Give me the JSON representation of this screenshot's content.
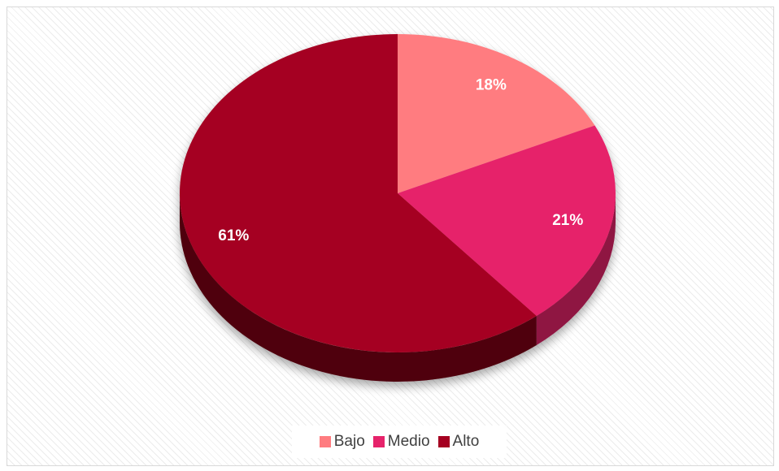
{
  "chart_data": {
    "type": "pie",
    "style": "3d",
    "title": "",
    "slices": [
      {
        "label": "Bajo",
        "value": 18,
        "display": "18%",
        "color": "#ff7c80",
        "side_color": "#a85052"
      },
      {
        "label": "Medio",
        "value": 21,
        "display": "21%",
        "color": "#e6236b",
        "side_color": "#8f1442"
      },
      {
        "label": "Alto",
        "value": 61,
        "display": "61%",
        "color": "#a50021",
        "side_color": "#4f0010"
      }
    ],
    "legend": {
      "position": "bottom",
      "entries": [
        "Bajo",
        "Medio",
        "Alto"
      ]
    },
    "data_labels": true,
    "label_color": "#ffffff"
  }
}
